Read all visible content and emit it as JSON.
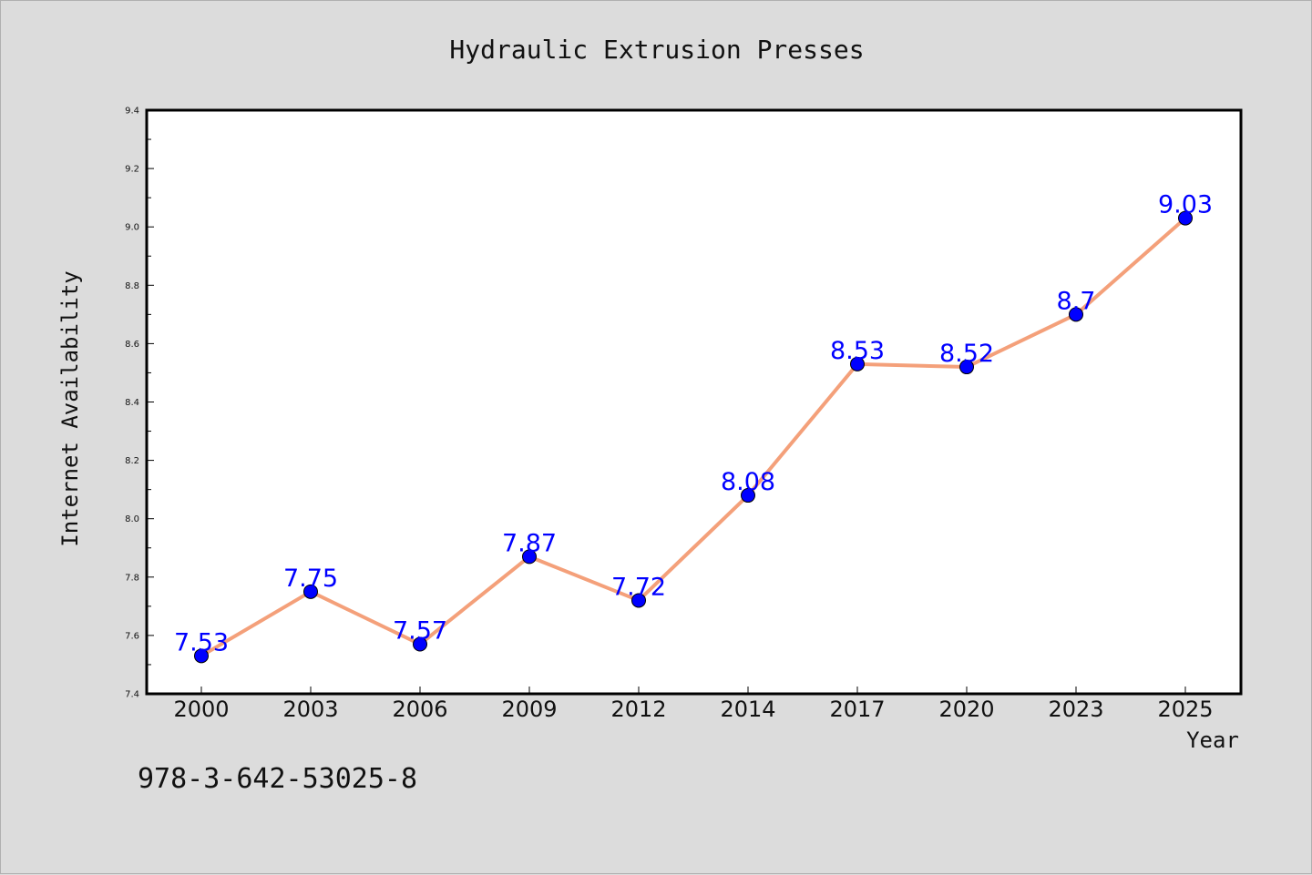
{
  "chart_data": {
    "type": "line",
    "title": "Hydraulic Extrusion Presses",
    "xlabel": "Year",
    "ylabel": "Internet Availability",
    "categories": [
      "2000",
      "2003",
      "2006",
      "2009",
      "2012",
      "2014",
      "2017",
      "2020",
      "2023",
      "2025"
    ],
    "values": [
      7.53,
      7.75,
      7.57,
      7.87,
      7.72,
      8.08,
      8.53,
      8.52,
      8.7,
      9.03
    ],
    "data_labels": [
      "7.53",
      "7.75",
      "7.57",
      "7.87",
      "7.72",
      "8.08",
      "8.53",
      "8.52",
      "8.7",
      "9.03"
    ],
    "ylim": [
      7.4,
      9.4
    ],
    "yticks": [
      "7.4",
      "7.6",
      "7.8",
      "8.0",
      "8.2",
      "8.4",
      "8.6",
      "8.8",
      "9.0",
      "9.2",
      "9.4"
    ],
    "grid": false,
    "line_color": "#f4a07a",
    "marker_color": "#0000ff",
    "label_color": "#0000ff",
    "annotation": "978-3-642-53025-8"
  }
}
